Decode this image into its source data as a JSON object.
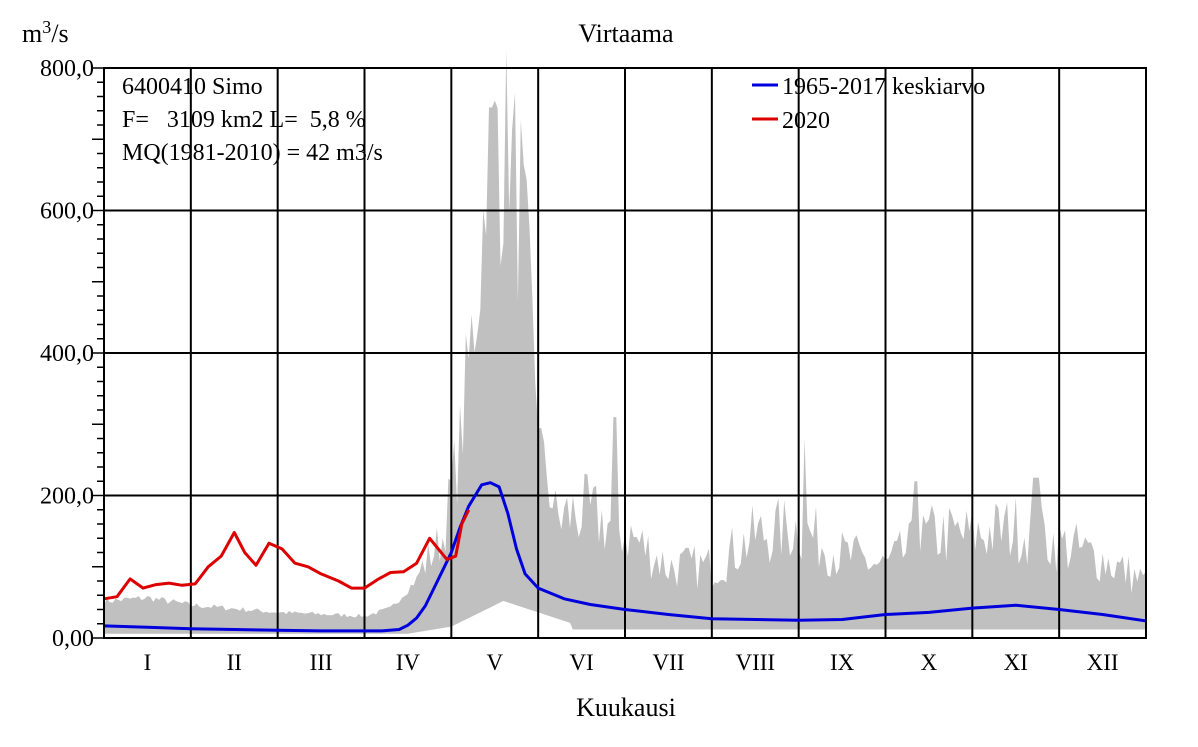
{
  "chart_data": {
    "type": "area",
    "title": "Virtaama",
    "ylabel": "m3/s",
    "xlabel": "Kuukausi",
    "ylim": [
      0,
      800
    ],
    "xlim": [
      0,
      12
    ],
    "grid": true,
    "legend_position": "top-right",
    "y_ticks": [
      {
        "value": 0,
        "label": "0,00"
      },
      {
        "value": 200,
        "label": "200,0"
      },
      {
        "value": 400,
        "label": "400,0"
      },
      {
        "value": 600,
        "label": "600,0"
      },
      {
        "value": 800,
        "label": "800,0"
      }
    ],
    "months": [
      "I",
      "II",
      "III",
      "IV",
      "V",
      "VI",
      "VII",
      "VIII",
      "IX",
      "X",
      "XI",
      "XII"
    ],
    "info_lines": [
      "6400410 Simo",
      "F=   3109 km2 L=  5,8 %",
      "MQ(1981-2010) = 42 m3/s"
    ],
    "colors": {
      "range_fill": "#c0c0c0",
      "mean_line": "#0000dd",
      "year_line": "#dd0000",
      "grid": "#000000",
      "frame": "#000000"
    },
    "series": [
      {
        "name": "1965-2017 keskiarvo",
        "color": "#0000dd",
        "x": [
          0,
          0.5,
          1.0,
          1.5,
          2.0,
          2.5,
          3.0,
          3.2,
          3.4,
          3.5,
          3.6,
          3.7,
          3.8,
          3.9,
          4.0,
          4.1,
          4.2,
          4.3,
          4.35,
          4.45,
          4.55,
          4.65,
          4.75,
          4.85,
          5.0,
          5.3,
          5.6,
          6.0,
          6.5,
          7.0,
          7.5,
          8.0,
          8.5,
          9.0,
          9.5,
          10.0,
          10.5,
          11.0,
          11.5,
          12.0
        ],
        "y": [
          17,
          15,
          13,
          12,
          11,
          10,
          10,
          10,
          12,
          18,
          28,
          45,
          70,
          95,
          120,
          155,
          185,
          205,
          215,
          218,
          212,
          175,
          125,
          90,
          70,
          55,
          47,
          40,
          33,
          27,
          26,
          25,
          26,
          33,
          36,
          42,
          46,
          40,
          33,
          24
        ]
      },
      {
        "name": "2020",
        "color": "#dd0000",
        "x": [
          0,
          0.15,
          0.3,
          0.45,
          0.6,
          0.75,
          0.9,
          1.05,
          1.2,
          1.35,
          1.5,
          1.62,
          1.75,
          1.9,
          2.05,
          2.2,
          2.35,
          2.5,
          2.7,
          2.85,
          3.0,
          3.15,
          3.3,
          3.45,
          3.6,
          3.75,
          3.85,
          3.95,
          4.05,
          4.12,
          4.2
        ],
        "y": [
          55,
          58,
          83,
          70,
          75,
          77,
          74,
          76,
          100,
          115,
          148,
          120,
          102,
          133,
          125,
          105,
          100,
          90,
          80,
          70,
          70,
          82,
          92,
          93,
          105,
          140,
          125,
          110,
          115,
          160,
          180
        ]
      }
    ]
  }
}
